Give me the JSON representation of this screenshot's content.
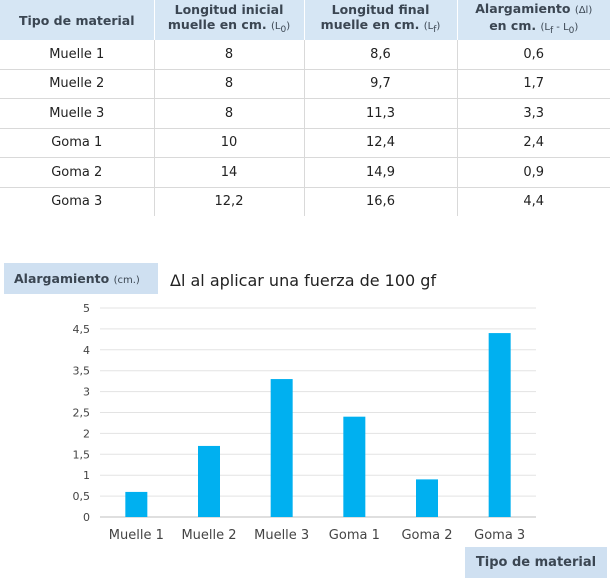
{
  "table": {
    "headers": [
      {
        "main": "Tipo de material",
        "sub": ""
      },
      {
        "main": "Longitud inicial muelle en cm.",
        "sub": "(L",
        "subsym": "0",
        "end": ")"
      },
      {
        "main": "Longitud final muelle en cm.",
        "sub": "(L",
        "subsym": "f",
        "end": ")"
      },
      {
        "main": "Alargamiento",
        "unit": "(Δl)",
        "main2": "en cm.",
        "sub": "(L",
        "subsym": "f",
        "mid": " - L",
        "subsym2": "0",
        "end": ")"
      }
    ],
    "rows": [
      [
        "Muelle 1",
        "8",
        "8,6",
        "0,6"
      ],
      [
        "Muelle 2",
        "8",
        "9,7",
        "1,7"
      ],
      [
        "Muelle 3",
        "8",
        "11,3",
        "3,3"
      ],
      [
        "Goma 1",
        "10",
        "12,4",
        "2,4"
      ],
      [
        "Goma 2",
        "14",
        "14,9",
        "0,9"
      ],
      [
        "Goma 3",
        "12,2",
        "16,6",
        "4,4"
      ]
    ]
  },
  "chart_data": {
    "type": "bar",
    "title": "Δl al aplicar una fuerza de 100 gf",
    "ylabel": "Alargamiento",
    "ylabel_unit": "(cm.)",
    "xlabel": "Tipo de material",
    "categories": [
      "Muelle 1",
      "Muelle 2",
      "Muelle 3",
      "Goma 1",
      "Goma 2",
      "Goma 3"
    ],
    "values": [
      0.6,
      1.7,
      3.3,
      2.4,
      0.9,
      4.4
    ],
    "ylim": [
      0,
      5
    ],
    "yticks": [
      "0",
      "0,5",
      "1",
      "1,5",
      "2",
      "2,5",
      "3",
      "3,5",
      "4",
      "4,5",
      "5"
    ],
    "grid": true,
    "bar_color": "#00b0f0"
  }
}
